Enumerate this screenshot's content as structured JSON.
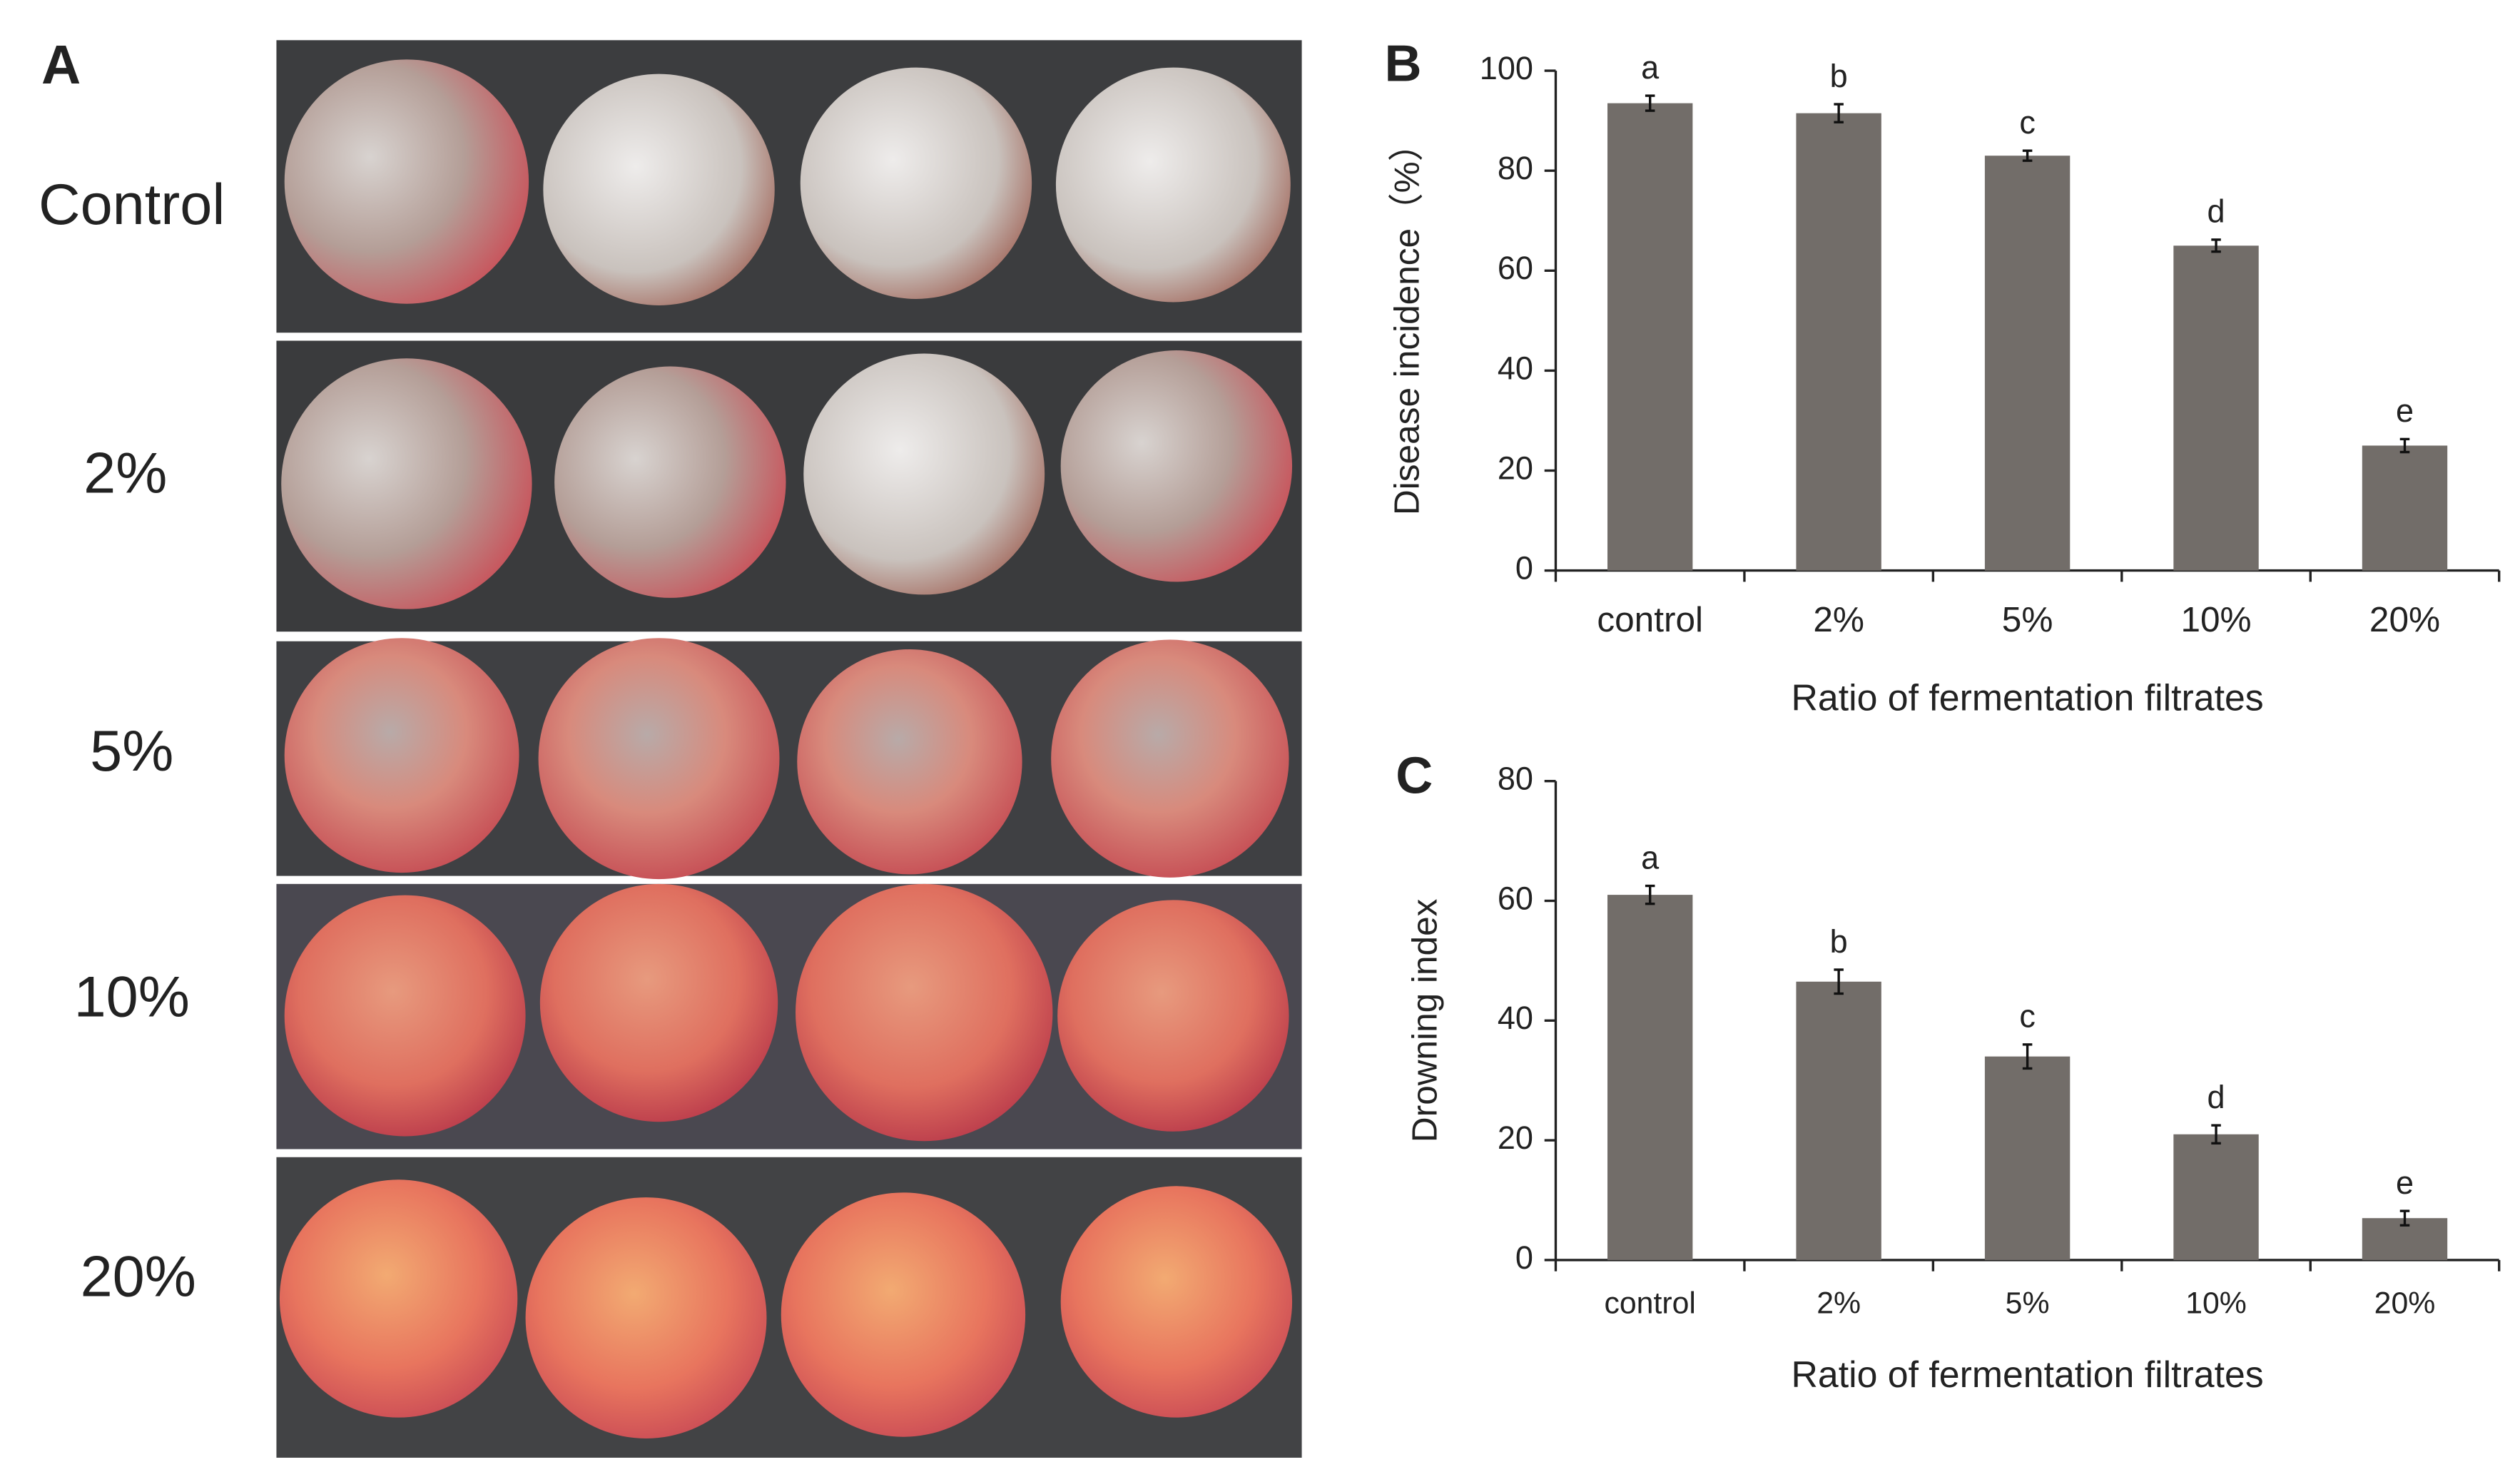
{
  "figure_a": {
    "panel": "A",
    "rows": [
      "Control",
      "2%",
      "5%",
      "10%",
      "20%"
    ]
  },
  "chart_data": [
    {
      "type": "bar",
      "panel": "B",
      "categories": [
        "control",
        "2%",
        "5%",
        "10%",
        "20%"
      ],
      "values": [
        93.5,
        91.5,
        83,
        65,
        25
      ],
      "errors": [
        1.5,
        1.8,
        1,
        1.2,
        1.3
      ],
      "annotations": [
        "a",
        "b",
        "c",
        "d",
        "e"
      ],
      "color": "#726d69",
      "ylim": [
        0,
        100
      ],
      "yticks": [
        0,
        20,
        40,
        60,
        80,
        100
      ],
      "y_label": "Disease incidence（%）",
      "x_label": "Ratio of fermentation filtrates"
    },
    {
      "type": "bar",
      "panel": "C",
      "categories": [
        "control",
        "2%",
        "5%",
        "10%",
        "20%"
      ],
      "values": [
        61,
        46.5,
        34,
        21,
        7
      ],
      "errors": [
        1.5,
        2,
        2,
        1.5,
        1.2
      ],
      "annotations": [
        "a",
        "b",
        "c",
        "d",
        "e"
      ],
      "color": "#726d69",
      "ylim": [
        0,
        80
      ],
      "yticks": [
        0,
        20,
        40,
        60,
        80
      ],
      "y_label": "Drowning index",
      "x_label": "Ratio of fermentation filtrates"
    }
  ]
}
